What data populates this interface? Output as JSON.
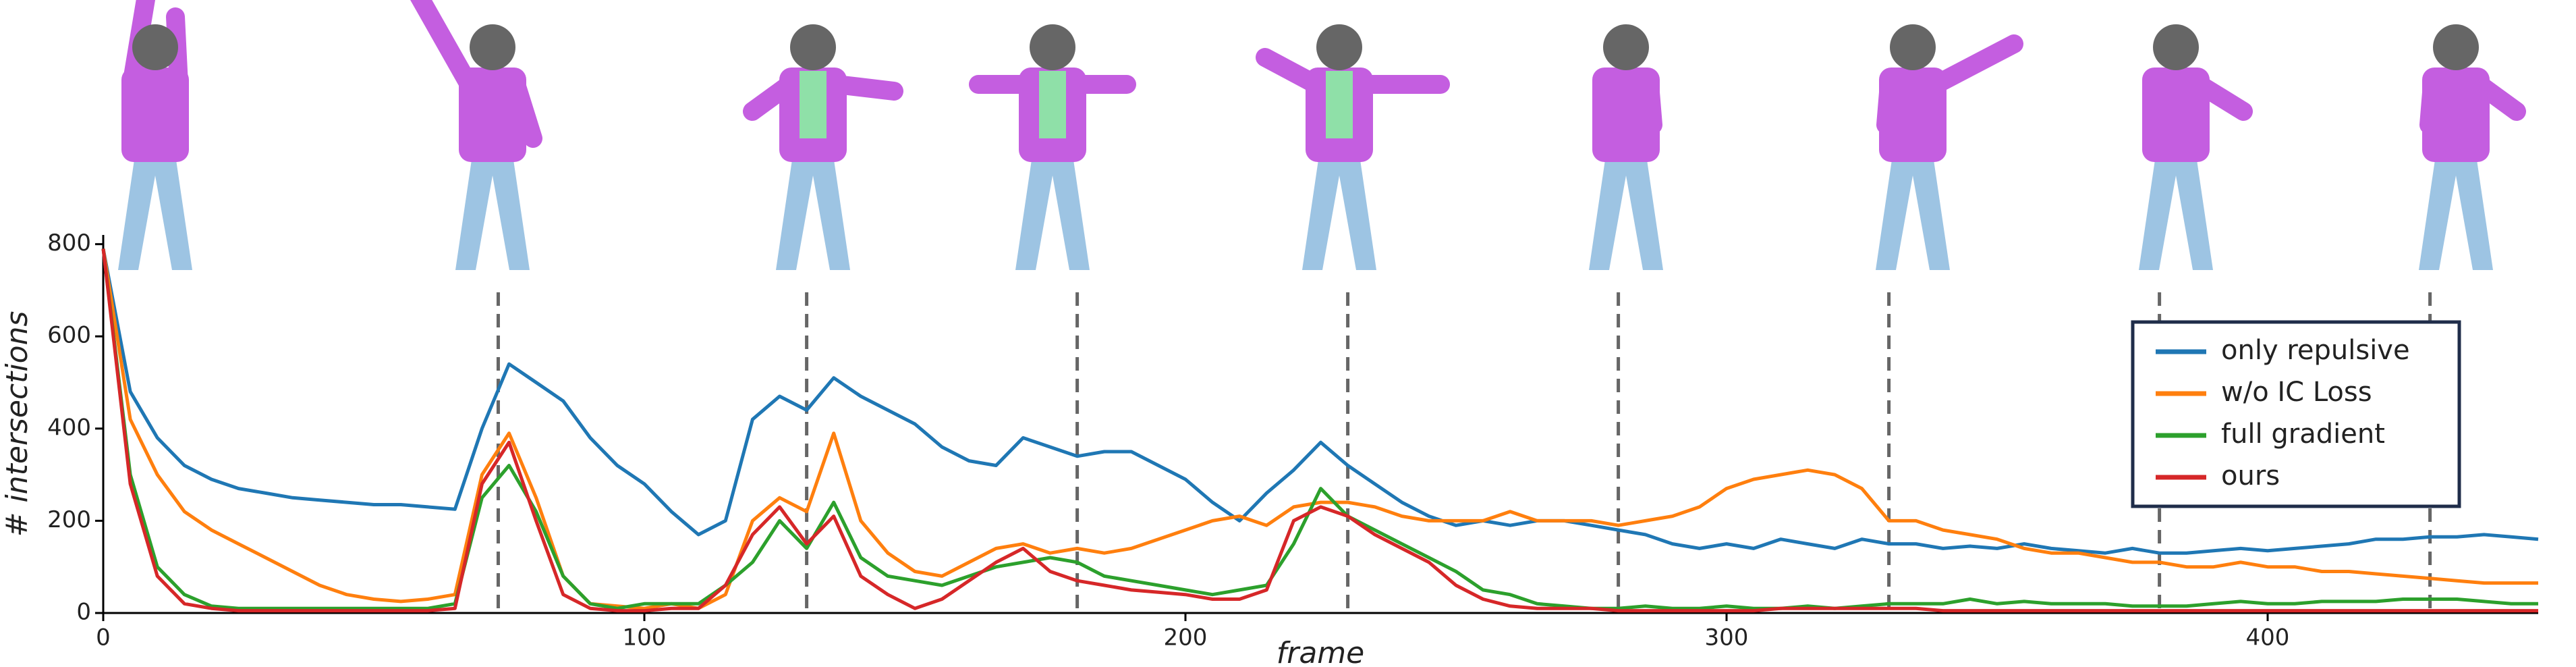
{
  "chart_data": {
    "type": "line",
    "xlabel": "frame",
    "ylabel": "# intersections",
    "xlim": [
      0,
      450
    ],
    "ylim": [
      0,
      820
    ],
    "xticks": [
      0,
      100,
      200,
      300,
      400
    ],
    "yticks": [
      0,
      200,
      400,
      600,
      800
    ],
    "vlines": [
      73,
      130,
      180,
      230,
      280,
      330,
      380,
      430
    ],
    "legend": "right",
    "x": [
      0,
      5,
      10,
      15,
      20,
      25,
      30,
      35,
      40,
      45,
      50,
      55,
      60,
      65,
      70,
      75,
      80,
      85,
      90,
      95,
      100,
      105,
      110,
      115,
      120,
      125,
      130,
      135,
      140,
      145,
      150,
      155,
      160,
      165,
      170,
      175,
      180,
      185,
      190,
      195,
      200,
      205,
      210,
      215,
      220,
      225,
      230,
      235,
      240,
      245,
      250,
      255,
      260,
      265,
      270,
      275,
      280,
      285,
      290,
      295,
      300,
      305,
      310,
      315,
      320,
      325,
      330,
      335,
      340,
      345,
      350,
      355,
      360,
      365,
      370,
      375,
      380,
      385,
      390,
      395,
      400,
      405,
      410,
      415,
      420,
      425,
      430,
      435,
      440,
      445,
      450
    ],
    "series": [
      {
        "name": "only repulsive",
        "color": "#1f77b4",
        "values": [
          790,
          480,
          380,
          320,
          290,
          270,
          260,
          250,
          245,
          240,
          235,
          235,
          230,
          225,
          400,
          540,
          500,
          460,
          380,
          320,
          280,
          220,
          170,
          200,
          420,
          470,
          440,
          510,
          470,
          440,
          410,
          360,
          330,
          320,
          380,
          360,
          340,
          350,
          350,
          320,
          290,
          240,
          200,
          260,
          310,
          370,
          320,
          280,
          240,
          210,
          190,
          200,
          190,
          200,
          200,
          190,
          180,
          170,
          150,
          140,
          150,
          140,
          160,
          150,
          140,
          160,
          150,
          150,
          140,
          145,
          140,
          150,
          140,
          135,
          130,
          140,
          130,
          130,
          135,
          140,
          135,
          140,
          145,
          150,
          160,
          160,
          165,
          165,
          170,
          165,
          160
        ]
      },
      {
        "name": "w/o IC Loss",
        "color": "#ff7f0e",
        "values": [
          790,
          420,
          300,
          220,
          180,
          150,
          120,
          90,
          60,
          40,
          30,
          25,
          30,
          40,
          300,
          390,
          250,
          80,
          20,
          15,
          10,
          20,
          10,
          40,
          200,
          250,
          220,
          390,
          200,
          130,
          90,
          80,
          110,
          140,
          150,
          130,
          140,
          130,
          140,
          160,
          180,
          200,
          210,
          190,
          230,
          240,
          240,
          230,
          210,
          200,
          200,
          200,
          220,
          200,
          200,
          200,
          190,
          200,
          210,
          230,
          270,
          290,
          300,
          310,
          300,
          270,
          200,
          200,
          180,
          170,
          160,
          140,
          130,
          130,
          120,
          110,
          110,
          100,
          100,
          110,
          100,
          100,
          90,
          90,
          85,
          80,
          75,
          70,
          65,
          65,
          65
        ]
      },
      {
        "name": "full gradient",
        "color": "#2ca02c",
        "values": [
          790,
          300,
          100,
          40,
          15,
          10,
          10,
          10,
          10,
          10,
          10,
          10,
          10,
          20,
          250,
          320,
          220,
          80,
          20,
          10,
          20,
          20,
          20,
          60,
          110,
          200,
          140,
          240,
          120,
          80,
          70,
          60,
          80,
          100,
          110,
          120,
          110,
          80,
          70,
          60,
          50,
          40,
          50,
          60,
          150,
          270,
          210,
          180,
          150,
          120,
          90,
          50,
          40,
          20,
          15,
          10,
          10,
          15,
          10,
          10,
          15,
          10,
          10,
          15,
          10,
          15,
          20,
          20,
          20,
          30,
          20,
          25,
          20,
          20,
          20,
          15,
          15,
          15,
          20,
          25,
          20,
          20,
          25,
          25,
          25,
          30,
          30,
          30,
          25,
          20,
          20
        ]
      },
      {
        "name": "ours",
        "color": "#d62728",
        "values": [
          790,
          280,
          80,
          20,
          10,
          5,
          5,
          5,
          5,
          5,
          5,
          5,
          5,
          10,
          280,
          370,
          200,
          40,
          10,
          5,
          5,
          10,
          10,
          60,
          170,
          230,
          150,
          210,
          80,
          40,
          10,
          30,
          70,
          110,
          140,
          90,
          70,
          60,
          50,
          45,
          40,
          30,
          30,
          50,
          200,
          230,
          210,
          170,
          140,
          110,
          60,
          30,
          15,
          10,
          10,
          10,
          5,
          5,
          5,
          5,
          5,
          5,
          10,
          10,
          10,
          10,
          10,
          10,
          5,
          5,
          5,
          5,
          5,
          5,
          5,
          5,
          5,
          5,
          5,
          5,
          5,
          5,
          5,
          5,
          5,
          5,
          5,
          5,
          5,
          5,
          5
        ]
      }
    ]
  }
}
